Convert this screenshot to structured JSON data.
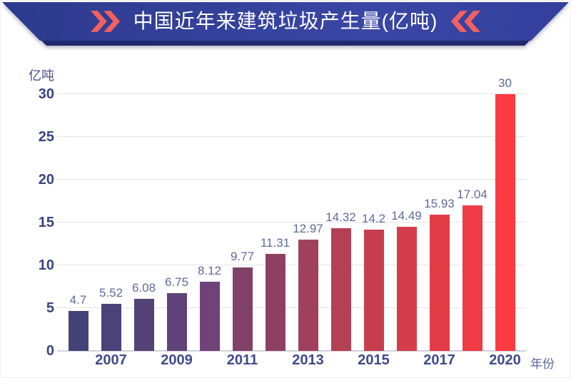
{
  "banner": {
    "title": "中国近年来建筑垃圾产生量(亿吨)",
    "bg_color_start": "#2c3a8c",
    "bg_color_end": "#3a46a4",
    "underside_color": "#20296e",
    "chevron_color": "#f2615f",
    "text_color": "#ffffff"
  },
  "chart_data": {
    "type": "bar",
    "title": "中国近年来建筑垃圾产生量(亿吨)",
    "y_unit_label": "亿吨",
    "x_axis_label": "年份",
    "categories": [
      "",
      "2007",
      "",
      "2009",
      "",
      "2011",
      "",
      "2013",
      "",
      "2015",
      "",
      "2017",
      "",
      "2020"
    ],
    "values": [
      4.7,
      5.52,
      6.08,
      6.75,
      8.12,
      9.77,
      11.31,
      12.97,
      14.32,
      14.2,
      14.49,
      15.93,
      17.04,
      30
    ],
    "value_labels": [
      "4.7",
      "5.52",
      "6.08",
      "6.75",
      "8.12",
      "9.77",
      "11.31",
      "12.97",
      "14.32",
      "14.2",
      "14.49",
      "15.93",
      "17.04",
      "30"
    ],
    "x_tick_labels": [
      "2007",
      "2009",
      "2011",
      "2013",
      "2015",
      "2017",
      "2020"
    ],
    "y_ticks": [
      0,
      5,
      10,
      15,
      20,
      25,
      30
    ],
    "ylim": [
      0,
      30
    ],
    "grid": true,
    "legend": "none",
    "bar_colors": [
      "#434277",
      "#4a4278",
      "#544376",
      "#5f4378",
      "#6f4379",
      "#7f4168",
      "#8e4063",
      "#a1405c",
      "#b34054",
      "#c63e4e",
      "#d43d4a",
      "#e23c47",
      "#ee3b44",
      "#fb3a42"
    ],
    "value_label_color": "#5f6b97",
    "y_tick_color": "#3a4480",
    "x_tick_color": "#3f4a89",
    "axis_label_color": "#58659a",
    "gridline_color": "#e4e4ea",
    "baseline_color": "#d2d3db"
  }
}
